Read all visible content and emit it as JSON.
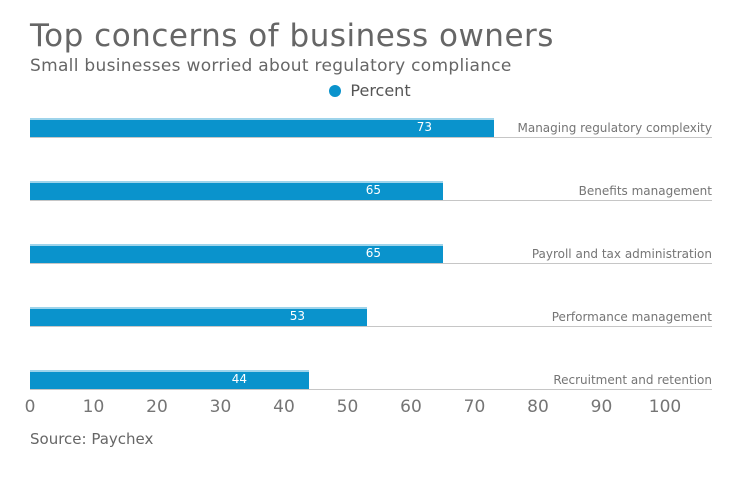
{
  "title": "Top concerns of business owners",
  "subtitle": "Small businesses worried about regulatory compliance",
  "legend": {
    "label": "Percent"
  },
  "source": "Source: Paychex",
  "colors": {
    "bar": "#0a93cc",
    "bar_top_edge": "#9ed4eb",
    "row_line": "#c6c6c6",
    "title_text": "#666666",
    "category_text": "#757575",
    "axis_text": "#757575",
    "value_text": "#ffffff"
  },
  "chart_data": {
    "type": "bar",
    "orientation": "horizontal",
    "title": "Top concerns of business owners",
    "subtitle": "Small businesses worried about regulatory compliance",
    "series_name": "Percent",
    "categories": [
      "Managing regulatory complexity",
      "Benefits management",
      "Payroll and tax administration",
      "Performance management",
      "Recruitment and retention"
    ],
    "values": [
      73,
      65,
      65,
      53,
      44
    ],
    "x_ticks": [
      0,
      10,
      20,
      30,
      40,
      50,
      60,
      70,
      80,
      90,
      100
    ],
    "xlim": [
      0,
      100
    ],
    "grid": false,
    "value_labels": "inside-end",
    "legend_position": "top-center",
    "source": "Source: Paychex"
  }
}
